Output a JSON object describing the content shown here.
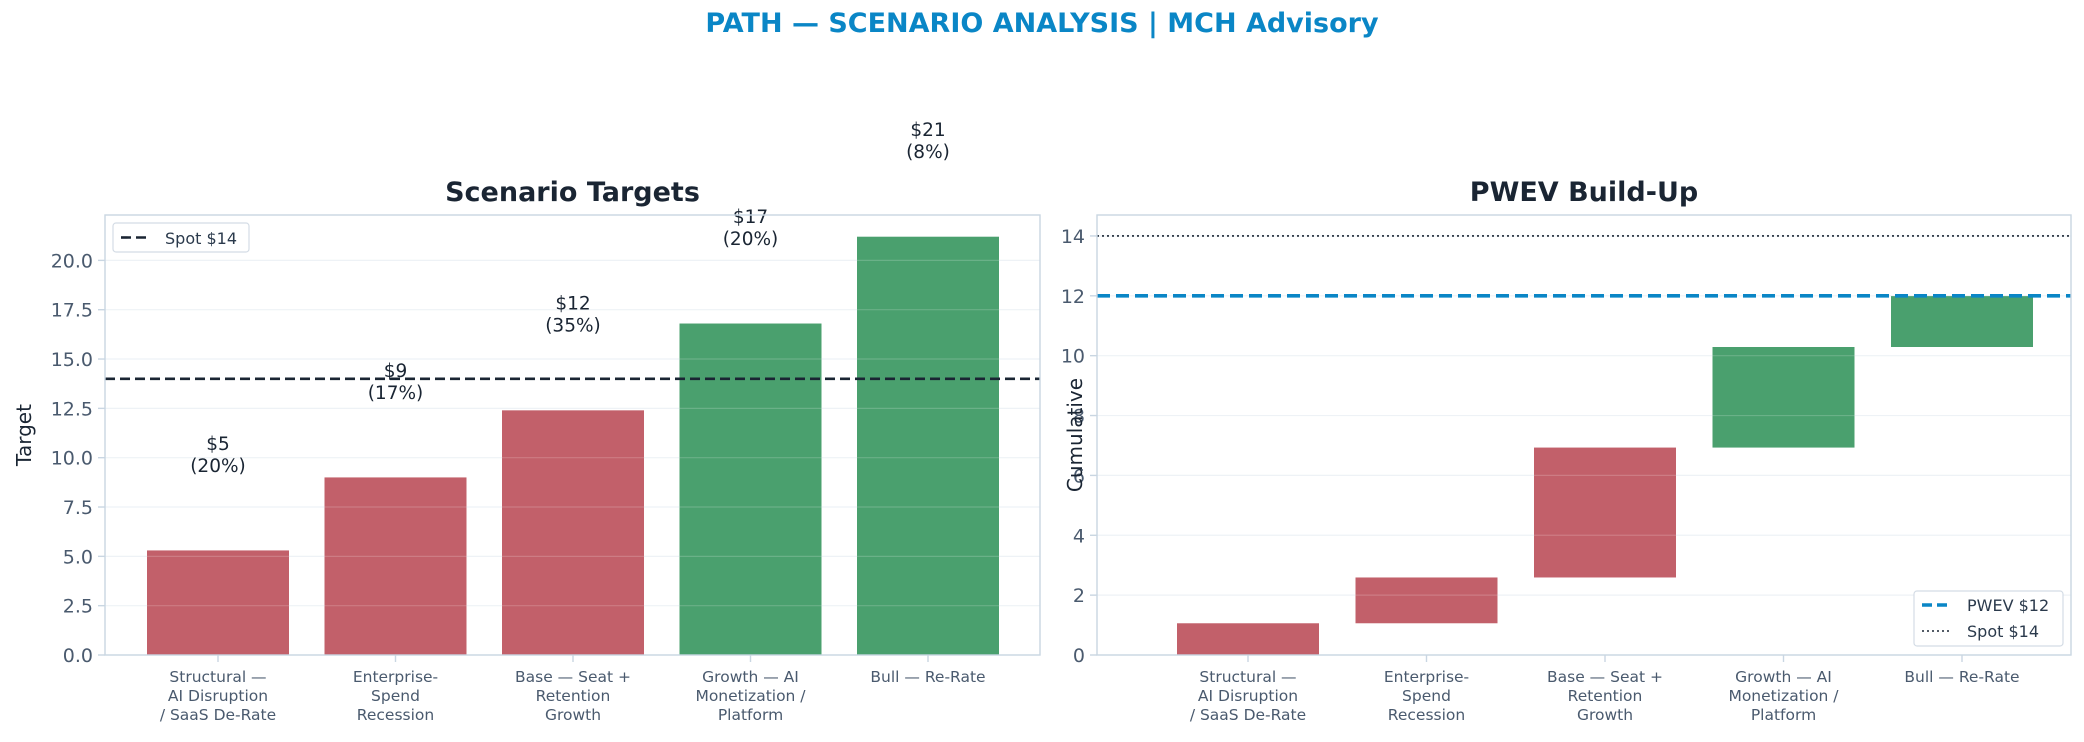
{
  "suptitle": "PATH — SCENARIO ANALYSIS | MCH Advisory",
  "colors": {
    "title_blue": "#0a86c6",
    "bear_red": "#c2606a",
    "bull_green": "#4aa06e",
    "spot_line": "#1a2533",
    "pwev_line": "#0a86c6",
    "axis": "#c9d6e2",
    "tick_text": "#4a5a6e"
  },
  "chart_data": [
    {
      "type": "bar",
      "title": "Scenario Targets",
      "ylabel": "Target",
      "xlabel": "",
      "categories": [
        [
          "Structural —",
          "AI Disruption",
          "/ SaaS De-Rate"
        ],
        [
          "Enterprise-",
          "Spend",
          "Recession"
        ],
        [
          "Base — Seat +",
          "Retention",
          "Growth"
        ],
        [
          "Growth — AI",
          "Monetization /",
          "Platform"
        ],
        [
          "Bull — Re-Rate"
        ]
      ],
      "values": [
        5.3,
        9.0,
        12.4,
        16.8,
        21.2
      ],
      "bar_labels": [
        [
          "$5",
          "(20%)"
        ],
        [
          "$9",
          "(17%)"
        ],
        [
          "$12",
          "(35%)"
        ],
        [
          "$17",
          "(20%)"
        ],
        [
          "$21",
          "(8%)"
        ]
      ],
      "bar_colors": [
        "bear",
        "bear",
        "bear",
        "bull",
        "bull"
      ],
      "ylim": [
        0,
        22.3
      ],
      "yticks": [
        "0.0",
        "2.5",
        "5.0",
        "7.5",
        "10.0",
        "12.5",
        "15.0",
        "17.5",
        "20.0"
      ],
      "reference_line": {
        "value": 14,
        "label": "Spot $14"
      },
      "legend": {
        "placement": "top-left",
        "entries": [
          "Spot $14"
        ]
      },
      "grid": true
    },
    {
      "type": "waterfall",
      "title": "PWEV Build-Up",
      "ylabel": "Cumulative",
      "xlabel": "",
      "categories": [
        [
          "Structural —",
          "AI Disruption",
          "/ SaaS De-Rate"
        ],
        [
          "Enterprise-",
          "Spend",
          "Recession"
        ],
        [
          "Base — Seat +",
          "Retention",
          "Growth"
        ],
        [
          "Growth — AI",
          "Monetization /",
          "Platform"
        ],
        [
          "Bull — Re-Rate"
        ]
      ],
      "steps": [
        {
          "start": 0.0,
          "end": 1.06
        },
        {
          "start": 1.06,
          "end": 2.59
        },
        {
          "start": 2.59,
          "end": 6.93
        },
        {
          "start": 6.93,
          "end": 10.29
        },
        {
          "start": 10.29,
          "end": 11.99
        }
      ],
      "bar_colors": [
        "bear",
        "bear",
        "bear",
        "bull",
        "bull"
      ],
      "ylim": [
        0,
        14.7
      ],
      "yticks": [
        "0",
        "2",
        "4",
        "6",
        "8",
        "10",
        "12",
        "14"
      ],
      "reference_lines": [
        {
          "value": 12,
          "label": "PWEV $12",
          "style": "dashed"
        },
        {
          "value": 14,
          "label": "Spot $14",
          "style": "dotted"
        }
      ],
      "legend": {
        "placement": "bottom-right",
        "entries": [
          "PWEV $12",
          "Spot $14"
        ]
      },
      "grid": true
    }
  ]
}
